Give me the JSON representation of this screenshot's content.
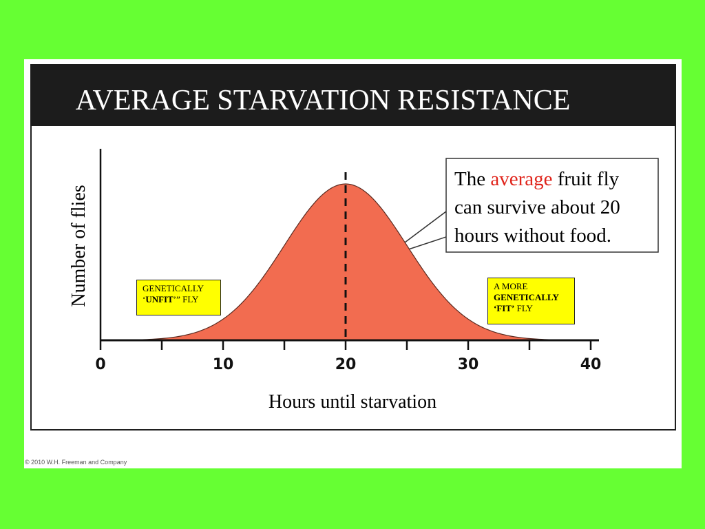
{
  "slide": {
    "background_color": "#66ff33",
    "copyright_note": "© 2010 W.H. Freeman and Company"
  },
  "chart_data": {
    "type": "area",
    "title": "AVERAGE STARVATION RESISTANCE",
    "xlabel": "Hours until starvation",
    "ylabel": "Number of flies",
    "xlim": [
      0,
      40
    ],
    "x_ticks_labeled": [
      "0",
      "10",
      "20",
      "30",
      "40"
    ],
    "x_ticks_minor": [
      5,
      15,
      25,
      35
    ],
    "distribution": "normal",
    "mean": 20,
    "std_dev": 5,
    "mean_marker": {
      "x": 20,
      "style": "dashed vertical line"
    },
    "fill_color": "#f26c50",
    "grid": false,
    "legend": "none",
    "annotations": {
      "callout": {
        "prefix": "The ",
        "highlight": "average",
        "suffix": " fruit fly can survive about 20 hours without food.",
        "highlight_color": "#e0241b"
      },
      "unfit_box": {
        "line1": "GENETICALLY",
        "quote_open": "‘",
        "bold": "UNFIT",
        "rest": "’” FLY",
        "background": "#ffff00"
      },
      "fit_box": {
        "line1": "A MORE",
        "line2": "GENETICALLY",
        "bold3": "‘FIT’",
        "rest3": " FLY",
        "background": "#ffff00"
      }
    }
  }
}
